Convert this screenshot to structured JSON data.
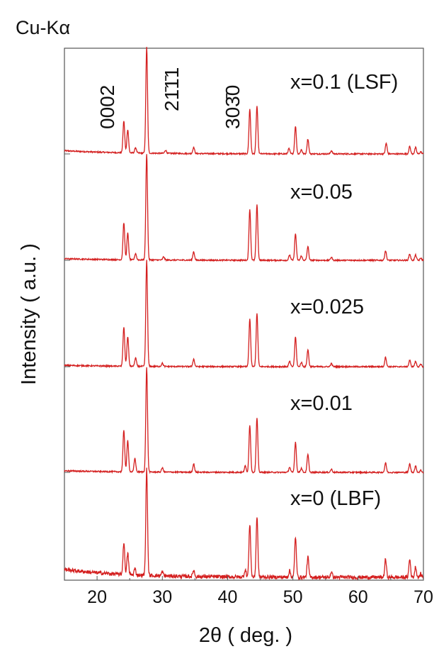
{
  "chart_data": {
    "type": "line",
    "title": "Cu-Kα",
    "xlabel": "2θ ( deg. )",
    "ylabel": "Intensity ( a.u. )",
    "xlim": [
      15,
      70
    ],
    "xticks": [
      20,
      30,
      40,
      50,
      60,
      70
    ],
    "y_scale": "arbitrary (offset stack)",
    "grid": false,
    "line_color": "#d42020",
    "peak_annotations": [
      {
        "label": "0002",
        "x": 24.1
      },
      {
        "label": "21̄1̄1",
        "x": 27.6
      },
      {
        "label": "303̄0",
        "x": 35.0
      }
    ],
    "peak_positions_2theta": [
      24.1,
      24.7,
      25.8,
      27.6,
      30.0,
      34.8,
      40.0,
      42.7,
      43.5,
      44.6,
      49.5,
      50.5,
      51.3,
      52.3,
      55.9,
      56.9,
      64.3,
      67.9,
      68.8,
      69.7
    ],
    "series": [
      {
        "name": "x=0.1 (LSF)",
        "baseline": 0.0,
        "slope_end": 0.12,
        "peaks": [
          [
            24.1,
            0.3
          ],
          [
            24.7,
            0.22
          ],
          [
            25.9,
            0.05
          ],
          [
            27.6,
            1.0
          ],
          [
            30.5,
            0.03
          ],
          [
            34.8,
            0.06
          ],
          [
            43.4,
            0.42
          ],
          [
            44.5,
            0.45
          ],
          [
            49.4,
            0.05
          ],
          [
            50.4,
            0.26
          ],
          [
            51.3,
            0.04
          ],
          [
            52.3,
            0.14
          ],
          [
            55.9,
            0.03
          ],
          [
            64.3,
            0.1
          ],
          [
            67.9,
            0.07
          ],
          [
            68.8,
            0.06
          ],
          [
            69.6,
            0.02
          ]
        ]
      },
      {
        "name": "x=0.05",
        "baseline": 0.0,
        "slope_end": 0.06,
        "peaks": [
          [
            24.1,
            0.35
          ],
          [
            24.7,
            0.25
          ],
          [
            25.9,
            0.06
          ],
          [
            27.6,
            1.0
          ],
          [
            30.2,
            0.03
          ],
          [
            34.8,
            0.08
          ],
          [
            43.4,
            0.48
          ],
          [
            44.5,
            0.52
          ],
          [
            49.5,
            0.05
          ],
          [
            50.4,
            0.25
          ],
          [
            51.3,
            0.04
          ],
          [
            52.3,
            0.13
          ],
          [
            55.9,
            0.03
          ],
          [
            64.2,
            0.09
          ],
          [
            67.9,
            0.06
          ],
          [
            68.8,
            0.05
          ],
          [
            69.6,
            0.02
          ]
        ]
      },
      {
        "name": "x=0.025",
        "baseline": 0.0,
        "slope_end": 0.05,
        "peaks": [
          [
            24.1,
            0.37
          ],
          [
            24.7,
            0.28
          ],
          [
            25.9,
            0.08
          ],
          [
            27.6,
            1.0
          ],
          [
            30.0,
            0.03
          ],
          [
            34.8,
            0.07
          ],
          [
            43.4,
            0.45
          ],
          [
            44.5,
            0.5
          ],
          [
            49.5,
            0.05
          ],
          [
            50.4,
            0.28
          ],
          [
            51.3,
            0.04
          ],
          [
            52.3,
            0.16
          ],
          [
            55.9,
            0.03
          ],
          [
            64.2,
            0.09
          ],
          [
            67.9,
            0.06
          ],
          [
            68.8,
            0.05
          ],
          [
            69.6,
            0.02
          ]
        ]
      },
      {
        "name": "x=0.01",
        "baseline": 0.0,
        "slope_end": 0.06,
        "peaks": [
          [
            24.1,
            0.4
          ],
          [
            24.7,
            0.3
          ],
          [
            25.8,
            0.13
          ],
          [
            27.6,
            1.0
          ],
          [
            30.0,
            0.04
          ],
          [
            34.8,
            0.08
          ],
          [
            42.7,
            0.06
          ],
          [
            43.4,
            0.45
          ],
          [
            44.5,
            0.52
          ],
          [
            49.5,
            0.05
          ],
          [
            50.4,
            0.29
          ],
          [
            51.3,
            0.04
          ],
          [
            52.3,
            0.17
          ],
          [
            55.9,
            0.03
          ],
          [
            64.2,
            0.09
          ],
          [
            67.9,
            0.08
          ],
          [
            68.8,
            0.06
          ],
          [
            69.6,
            0.02
          ]
        ]
      },
      {
        "name": "x=0 (LBF)",
        "baseline": 0.0,
        "slope_end": 0.3,
        "peaks": [
          [
            24.1,
            0.3
          ],
          [
            24.7,
            0.2
          ],
          [
            25.8,
            0.06
          ],
          [
            27.6,
            1.0
          ],
          [
            30.0,
            0.04
          ],
          [
            34.8,
            0.06
          ],
          [
            42.7,
            0.07
          ],
          [
            43.4,
            0.5
          ],
          [
            44.5,
            0.57
          ],
          [
            49.5,
            0.06
          ],
          [
            50.4,
            0.38
          ],
          [
            52.3,
            0.19
          ],
          [
            55.9,
            0.05
          ],
          [
            64.2,
            0.17
          ],
          [
            67.9,
            0.17
          ],
          [
            68.8,
            0.1
          ],
          [
            69.6,
            0.03
          ]
        ]
      }
    ]
  }
}
